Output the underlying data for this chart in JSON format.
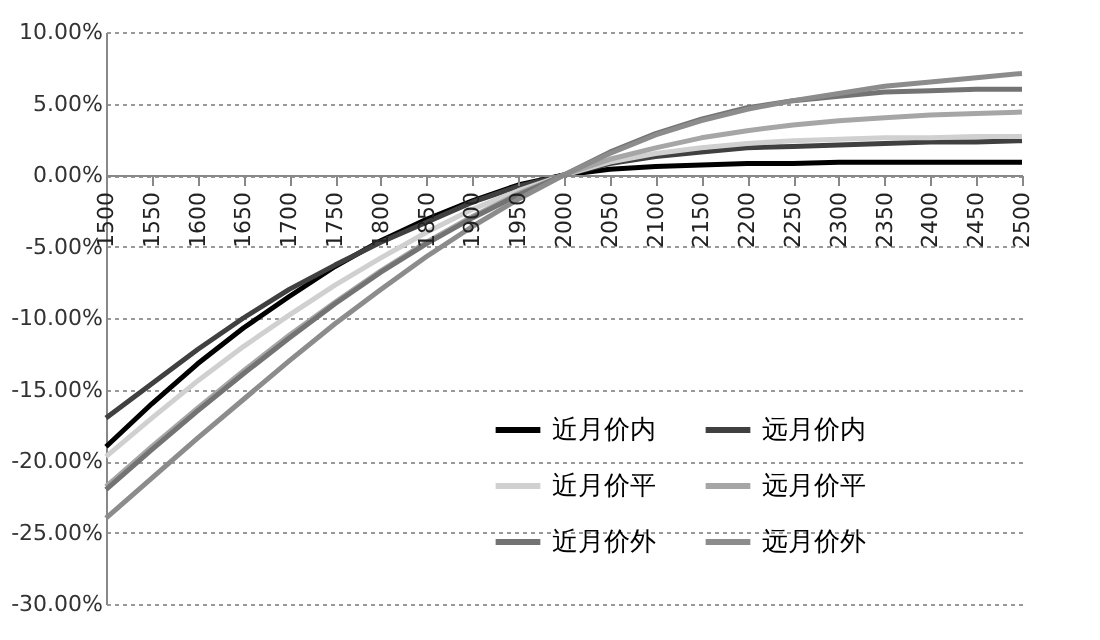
{
  "chart_data": {
    "type": "line",
    "categories": [
      "1500",
      "1550",
      "1600",
      "1650",
      "1700",
      "1750",
      "1800",
      "1850",
      "1900",
      "1950",
      "2000",
      "2050",
      "2100",
      "2150",
      "2200",
      "2250",
      "2300",
      "2350",
      "2400",
      "2450",
      "2500"
    ],
    "series": [
      {
        "name": "近月价内",
        "color": "#000000",
        "values": [
          -19,
          -16,
          -13.2,
          -10.7,
          -8.5,
          -6.4,
          -4.6,
          -3.1,
          -1.8,
          -0.7,
          0,
          0.4,
          0.6,
          0.7,
          0.8,
          0.8,
          0.9,
          0.9,
          0.9,
          0.9,
          0.9
        ]
      },
      {
        "name": "远月价内",
        "color": "#404040",
        "values": [
          -17,
          -14.6,
          -12.2,
          -10,
          -8,
          -6.3,
          -4.7,
          -3.3,
          -1.9,
          -0.8,
          0,
          0.8,
          1.3,
          1.6,
          1.9,
          2,
          2.1,
          2.2,
          2.3,
          2.3,
          2.4
        ]
      },
      {
        "name": "近月价平",
        "color": "#d0d0d0",
        "values": [
          -19.7,
          -17,
          -14.4,
          -12,
          -9.8,
          -7.7,
          -5.8,
          -4,
          -2.4,
          -1.1,
          0,
          0.9,
          1.5,
          1.9,
          2.2,
          2.4,
          2.5,
          2.6,
          2.6,
          2.7,
          2.7
        ]
      },
      {
        "name": "远月价平",
        "color": "#a6a6a6",
        "values": [
          -21.8,
          -19,
          -16.3,
          -13.7,
          -11.2,
          -8.9,
          -6.7,
          -4.7,
          -2.9,
          -1.3,
          0,
          1.1,
          1.9,
          2.6,
          3.1,
          3.5,
          3.8,
          4,
          4.2,
          4.3,
          4.4
        ]
      },
      {
        "name": "近月价外",
        "color": "#737373",
        "values": [
          -22,
          -19.2,
          -16.5,
          -13.9,
          -11.4,
          -9,
          -6.8,
          -4.8,
          -3,
          -1.4,
          0,
          1.6,
          2.9,
          3.9,
          4.7,
          5.2,
          5.5,
          5.8,
          5.9,
          6,
          6
        ]
      },
      {
        "name": "远月价外",
        "color": "#8c8c8c",
        "values": [
          -24,
          -21.2,
          -18.4,
          -15.7,
          -13,
          -10.4,
          -8,
          -5.7,
          -3.6,
          -1.7,
          0,
          1.5,
          2.8,
          3.8,
          4.6,
          5.2,
          5.7,
          6.2,
          6.5,
          6.8,
          7.1
        ]
      }
    ],
    "ylim": [
      -30,
      10
    ],
    "yticks": [
      {
        "value": 10,
        "label": "10.00%"
      },
      {
        "value": 5,
        "label": "5.00%"
      },
      {
        "value": 0,
        "label": "0.00%"
      },
      {
        "value": -5,
        "label": "-5.00%"
      },
      {
        "value": -10,
        "label": "-10.00%"
      },
      {
        "value": -15,
        "label": "-15.00%"
      },
      {
        "value": -20,
        "label": "-20.00%"
      },
      {
        "value": -25,
        "label": "-25.00%"
      },
      {
        "value": -30,
        "label": "-30.00%"
      }
    ],
    "grid": "y",
    "legend": "bottom right",
    "line_style": "solid"
  }
}
